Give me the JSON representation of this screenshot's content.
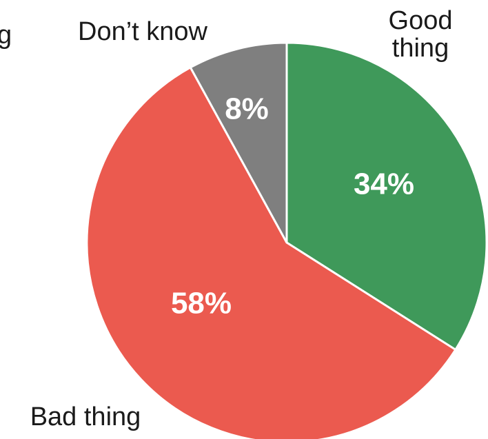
{
  "chart_data": {
    "type": "pie",
    "slices": [
      {
        "label_lines": [
          "Good",
          "thing"
        ],
        "value": 34,
        "value_label": "34%",
        "color": "#3f995a"
      },
      {
        "label_lines": [
          "Bad thing"
        ],
        "value": 58,
        "value_label": "58%",
        "color": "#eb5a4f"
      },
      {
        "label_lines": [
          "Don’t know"
        ],
        "value": 8,
        "value_label": "8%",
        "color": "#7f7f7f"
      }
    ],
    "clipped_label_fragment": "g",
    "start_angle": "top",
    "direction": "clockwise"
  }
}
